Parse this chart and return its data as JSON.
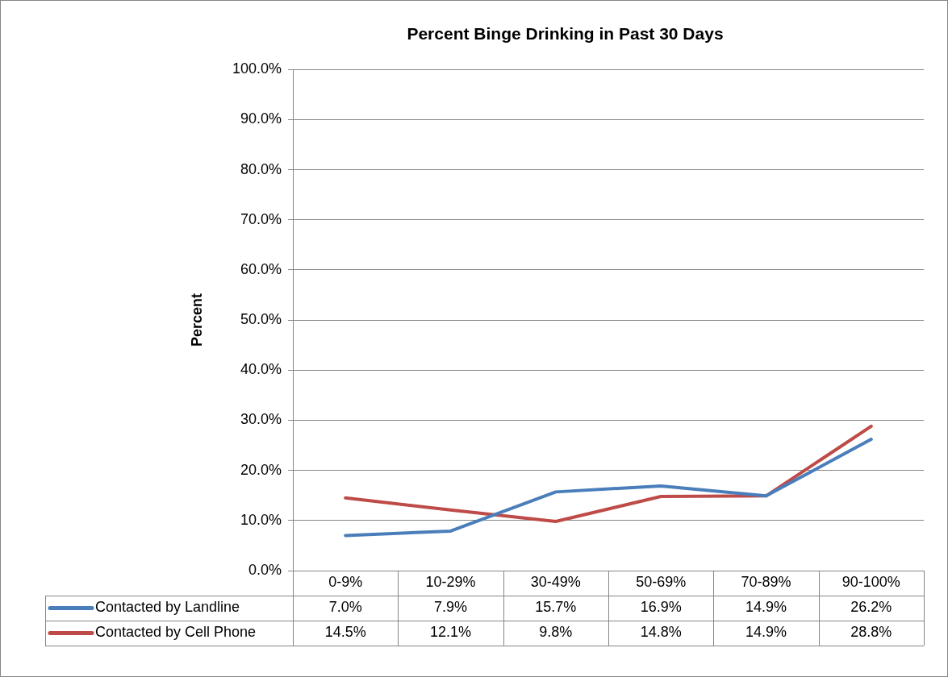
{
  "chart_data": {
    "type": "line",
    "title": "Percent Binge Drinking in Past 30 Days",
    "ylabel": "Percent",
    "categories": [
      "0-9%",
      "10-29%",
      "30-49%",
      "50-69%",
      "70-89%",
      "90-100%"
    ],
    "series": [
      {
        "name": "Contacted by Landline",
        "color": "#4a7ebb",
        "values": [
          7.0,
          7.9,
          15.7,
          16.9,
          14.9,
          26.2
        ],
        "value_labels": [
          "7.0%",
          "7.9%",
          "15.7%",
          "16.9%",
          "14.9%",
          "26.2%"
        ]
      },
      {
        "name": "Contacted by Cell Phone",
        "color": "#be4b48",
        "values": [
          14.5,
          12.1,
          9.8,
          14.8,
          14.9,
          28.8
        ],
        "value_labels": [
          "14.5%",
          "12.1%",
          "9.8%",
          "14.8%",
          "14.9%",
          "28.8%"
        ]
      }
    ],
    "ylim": [
      0,
      100
    ],
    "yticks": [
      {
        "value": 0,
        "label": "0.0%"
      },
      {
        "value": 10,
        "label": "10.0%"
      },
      {
        "value": 20,
        "label": "20.0%"
      },
      {
        "value": 30,
        "label": "30.0%"
      },
      {
        "value": 40,
        "label": "40.0%"
      },
      {
        "value": 50,
        "label": "50.0%"
      },
      {
        "value": 60,
        "label": "60.0%"
      },
      {
        "value": 70,
        "label": "70.0%"
      },
      {
        "value": 80,
        "label": "80.0%"
      },
      {
        "value": 90,
        "label": "90.0%"
      },
      {
        "value": 100,
        "label": "100.0%"
      }
    ],
    "grid": "y",
    "legend": "bottom",
    "marker": "none",
    "line_style": "solid"
  }
}
